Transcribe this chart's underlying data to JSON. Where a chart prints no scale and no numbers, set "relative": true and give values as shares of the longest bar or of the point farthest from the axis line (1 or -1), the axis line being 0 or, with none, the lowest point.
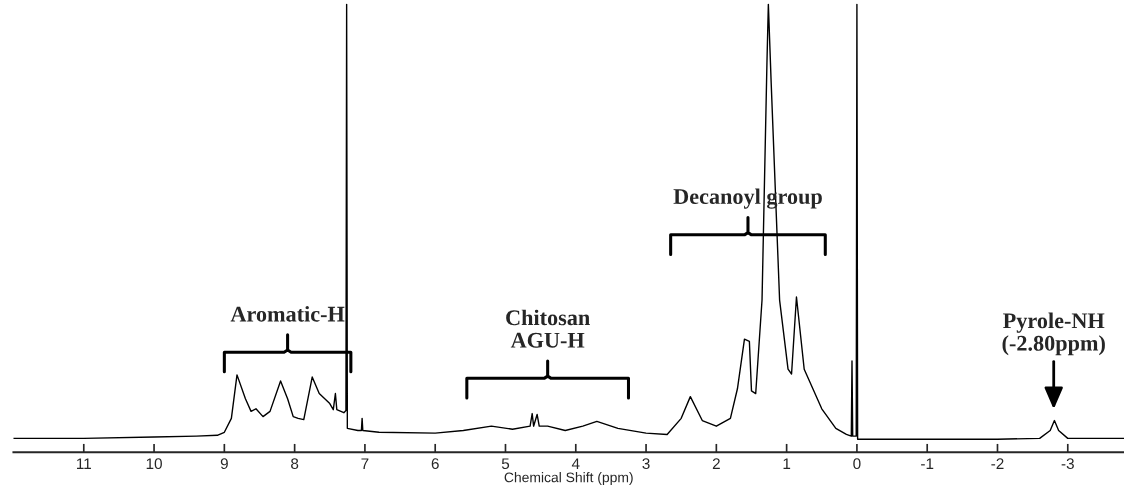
{
  "chart_data": {
    "type": "line",
    "relative": true,
    "xlabel": "Chemical Shift (ppm)",
    "xlim": [
      12.0,
      -3.8
    ],
    "xticks": [
      11,
      10,
      9,
      8,
      7,
      6,
      5,
      4,
      3,
      2,
      1,
      0,
      -1,
      -2,
      -3
    ],
    "grid": false,
    "legend": false,
    "marker": "none",
    "line_style": "solid",
    "series": [
      {
        "color": "#000000",
        "x": [
          12.0,
          11.0,
          10.0,
          9.4,
          9.1,
          9.0,
          8.9,
          8.82,
          8.7,
          8.62,
          8.55,
          8.45,
          8.35,
          8.2,
          8.1,
          8.02,
          7.95,
          7.87,
          7.75,
          7.65,
          7.5,
          7.45,
          7.42,
          7.4,
          7.3,
          7.27,
          7.26,
          7.25,
          7.1,
          7.05,
          7.04,
          7.03,
          6.8,
          6.0,
          5.6,
          5.2,
          4.9,
          4.65,
          4.62,
          4.6,
          4.55,
          4.52,
          4.4,
          4.15,
          3.9,
          3.7,
          3.4,
          3.0,
          2.7,
          2.5,
          2.37,
          2.2,
          2.0,
          1.8,
          1.7,
          1.6,
          1.53,
          1.5,
          1.44,
          1.35,
          1.28,
          1.26,
          1.22,
          1.1,
          0.98,
          0.93,
          0.86,
          0.75,
          0.5,
          0.3,
          0.15,
          0.08,
          0.07,
          0.06,
          0.01,
          0.0,
          -0.01,
          -1.0,
          -2.0,
          -2.6,
          -2.75,
          -2.81,
          -2.87,
          -3.0,
          -3.8
        ],
        "values": [
          0.002,
          0.002,
          0.005,
          0.007,
          0.009,
          0.016,
          0.048,
          0.148,
          0.093,
          0.064,
          0.07,
          0.052,
          0.064,
          0.134,
          0.093,
          0.052,
          0.048,
          0.045,
          0.143,
          0.105,
          0.082,
          0.068,
          0.105,
          0.068,
          0.061,
          0.066,
          1.0,
          0.025,
          0.02,
          0.02,
          0.048,
          0.02,
          0.016,
          0.014,
          0.02,
          0.03,
          0.023,
          0.03,
          0.059,
          0.03,
          0.057,
          0.03,
          0.03,
          0.02,
          0.03,
          0.041,
          0.025,
          0.014,
          0.011,
          0.048,
          0.098,
          0.043,
          0.03,
          0.048,
          0.116,
          0.23,
          0.225,
          0.111,
          0.105,
          0.32,
          0.866,
          1.0,
          0.82,
          0.32,
          0.161,
          0.15,
          0.327,
          0.161,
          0.07,
          0.025,
          0.011,
          0.007,
          0.18,
          0.007,
          0.007,
          1.0,
          0.0,
          0.0,
          0.0,
          0.002,
          0.02,
          0.043,
          0.02,
          0.002,
          0.002
        ]
      }
    ],
    "annotations": [
      "Aromatic-H",
      "Chitosan\nAGU-H",
      "Decanoyl group",
      {
        "text": "Pyrole-NH\n(-2.80ppm)",
        "x": -2.8,
        "y": 0.043
      }
    ]
  }
}
